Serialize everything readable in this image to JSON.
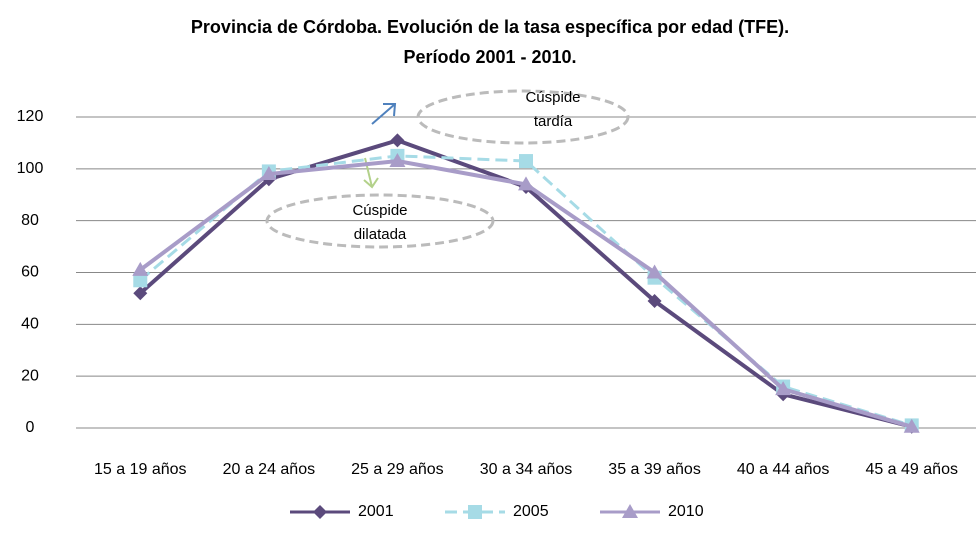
{
  "chart_data": {
    "type": "line",
    "title": [
      "Provincia de Córdoba. Evolución de la tasa específica por edad (TFE).",
      "Período 2001 - 2010."
    ],
    "categories": [
      "15 a 19 años",
      "20 a 24 años",
      "25 a 29 años",
      "30 a 34 años",
      "35 a 39 años",
      "40 a 44 años",
      "45 a 49 años"
    ],
    "series": [
      {
        "name": "2001",
        "color": "#5b4a7c",
        "marker": "diamond",
        "dash": false,
        "values": [
          52,
          96,
          111,
          93,
          49,
          13,
          0.5
        ]
      },
      {
        "name": "2005",
        "color": "#a6dbe6",
        "marker": "square",
        "dash": true,
        "values": [
          57,
          99,
          105,
          103,
          58,
          16,
          1
        ]
      },
      {
        "name": "2010",
        "color": "#a89cc8",
        "marker": "triangle",
        "dash": false,
        "values": [
          61,
          98,
          103,
          94,
          60,
          15,
          0.5
        ]
      }
    ],
    "annotations": [
      [
        "Cúspide",
        "tardía"
      ],
      [
        "Cúspide",
        "dilatada"
      ]
    ],
    "ylim": [
      0,
      120
    ],
    "yticks": [
      0,
      20,
      40,
      60,
      80,
      100,
      120
    ],
    "grid": true,
    "legend": "bottom"
  }
}
